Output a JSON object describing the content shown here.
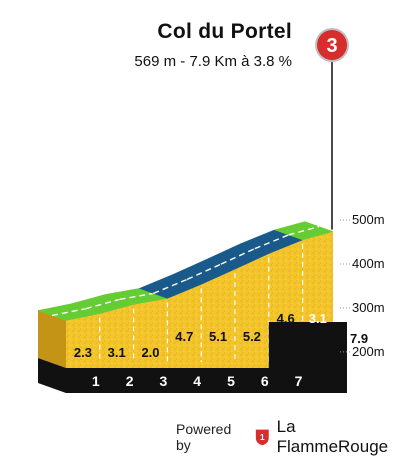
{
  "header": {
    "title": "Col du Portel",
    "subtitle": "569 m - 7.9 Km à 3.8 %",
    "category": "3"
  },
  "footer": {
    "powered_by": "Powered by",
    "brand_logo_text": "1",
    "brand_name": "La FlammeRouge"
  },
  "colors": {
    "terrain": "#f3c52a",
    "terrain_side": "#c49416",
    "easy_grade": "#66cc33",
    "steep_grade": "#1a5a8a",
    "base": "#111111",
    "marker": "#d62d2d"
  },
  "chart_data": {
    "type": "area",
    "x_unit": "km",
    "total_distance_label": "7.9",
    "y_ticks": [
      "200m",
      "300m",
      "400m",
      "500m"
    ],
    "y_tick_values": [
      200,
      300,
      400,
      500
    ],
    "ylim": [
      170,
      580
    ],
    "km_labels": [
      "1",
      "2",
      "3",
      "4",
      "5",
      "6",
      "7"
    ],
    "segments": [
      {
        "from_km": 0,
        "to_km": 1,
        "gradient": "2.3",
        "color": "easy_grade"
      },
      {
        "from_km": 1,
        "to_km": 2,
        "gradient": "3.1",
        "color": "easy_grade"
      },
      {
        "from_km": 2,
        "to_km": 3,
        "gradient": "2.0",
        "color": "easy_grade"
      },
      {
        "from_km": 3,
        "to_km": 4,
        "gradient": "4.7",
        "color": "steep_grade"
      },
      {
        "from_km": 4,
        "to_km": 5,
        "gradient": "5.1",
        "color": "steep_grade"
      },
      {
        "from_km": 5,
        "to_km": 6,
        "gradient": "5.2",
        "color": "steep_grade"
      },
      {
        "from_km": 6,
        "to_km": 7,
        "gradient": "4.6",
        "color": "steep_grade"
      },
      {
        "from_km": 7,
        "to_km": 7.9,
        "gradient": "3.1",
        "color": "easy_grade"
      }
    ],
    "summit_elevation": 569
  }
}
